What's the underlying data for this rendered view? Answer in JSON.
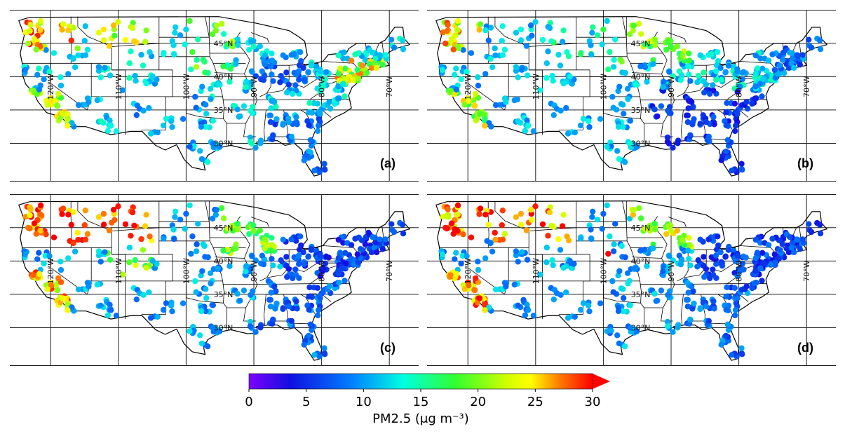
{
  "panels": [
    {
      "id": "a",
      "label": "(a)",
      "seed": 11,
      "theme": "a"
    },
    {
      "id": "b",
      "label": "(b)",
      "seed": 23,
      "theme": "b"
    },
    {
      "id": "c",
      "label": "(c)",
      "seed": 37,
      "theme": "c"
    },
    {
      "id": "d",
      "label": "(d)",
      "seed": 53,
      "theme": "d"
    }
  ],
  "lat_labels": [
    "45°N",
    "40°N",
    "35°N",
    "30°N"
  ],
  "lon_labels": [
    "120°W",
    "110°W",
    "100°W",
    "90°W",
    "80°W",
    "70°W"
  ],
  "lat_values": [
    45,
    40,
    35,
    30
  ],
  "lon_values": [
    -120,
    -110,
    -100,
    -90,
    -80,
    -70
  ],
  "colorbar": {
    "min": 0,
    "max": 30,
    "ticks": [
      "0",
      "5",
      "10",
      "15",
      "20",
      "25",
      "30"
    ],
    "tick_values": [
      0,
      5,
      10,
      15,
      20,
      25,
      30
    ],
    "title": "PM2.5 (μg m⁻³)",
    "colormap": "jet",
    "extend": "max"
  }
}
